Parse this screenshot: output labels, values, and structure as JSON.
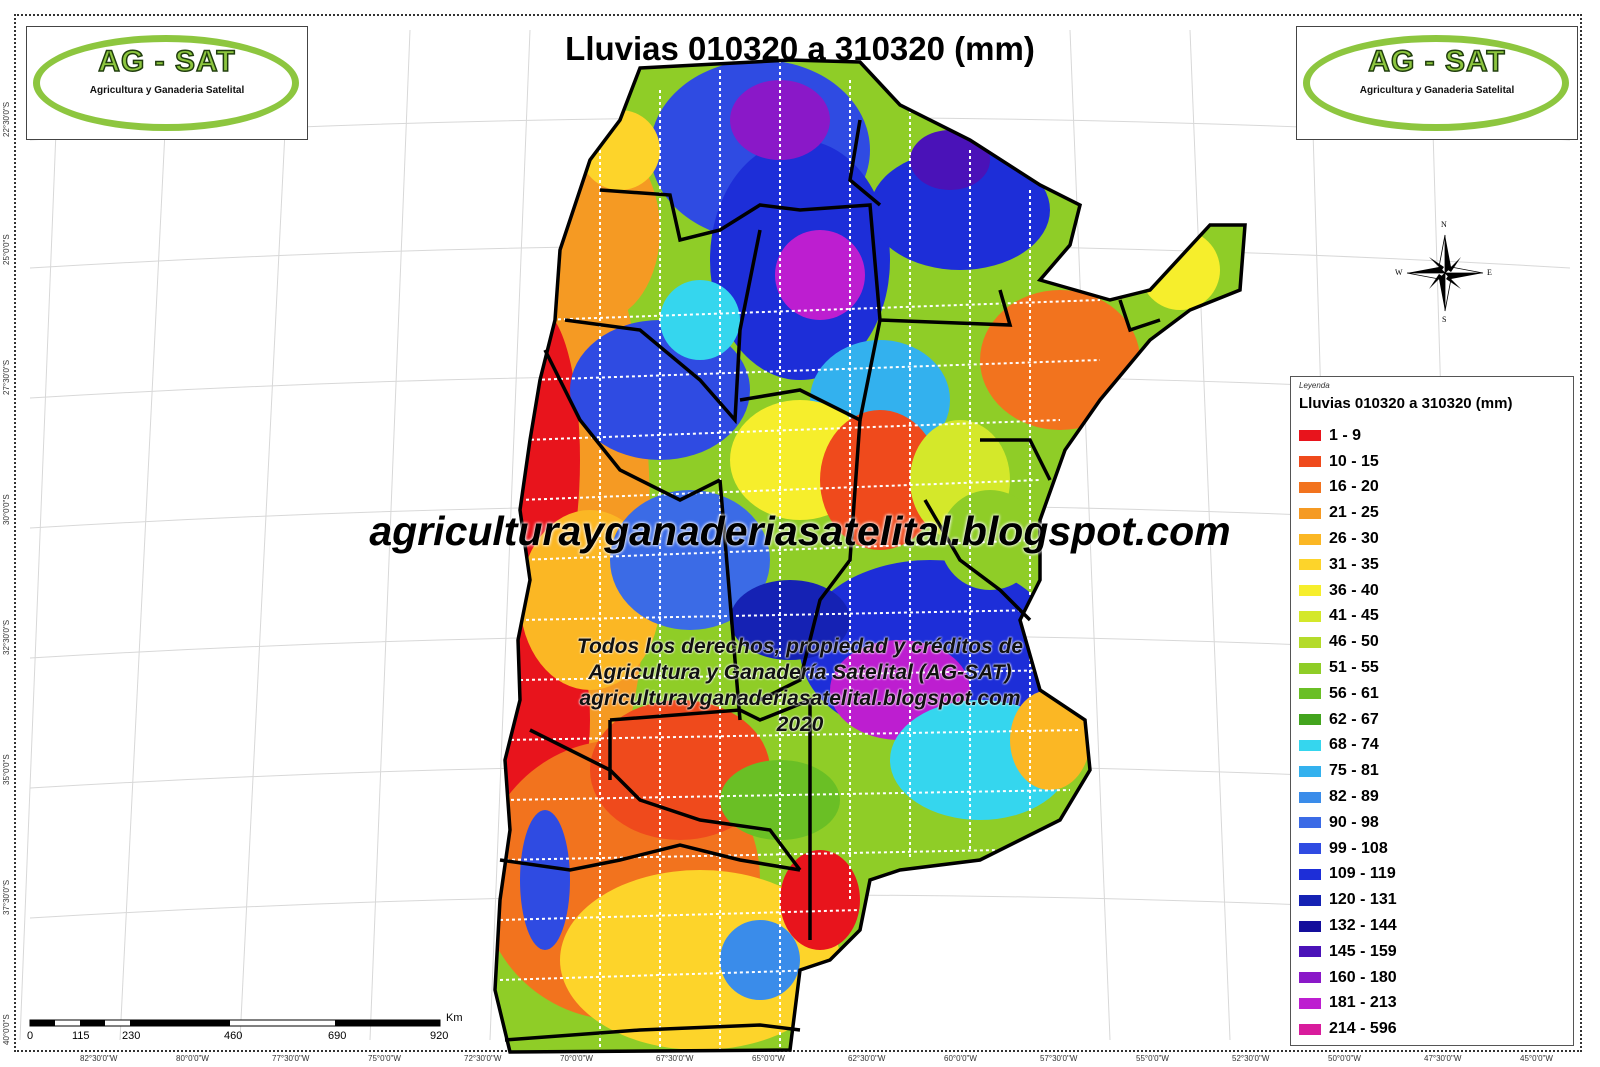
{
  "title": "Lluvias 010320 a 310320 (mm)",
  "logo": {
    "title": "AG - SAT",
    "subtitle": "Agricultura y Ganaderia Satelital",
    "color": "#8dc63f"
  },
  "watermark": "agriculturayganaderiasatelital.blogspot.com",
  "credits": [
    "Todos los derechos, propiedad y créditos de",
    "Agricultura y Ganadería Satelital (AG-SAT)",
    "agriculturayganaderiasatelital.blogspot.com",
    "2020"
  ],
  "legend": {
    "header": "Leyenda",
    "title": "Lluvias 010320 a 310320 (mm)",
    "items": [
      {
        "label": "1 - 9",
        "color": "#e8141c"
      },
      {
        "label": "10 - 15",
        "color": "#ef4a1c"
      },
      {
        "label": "16 - 20",
        "color": "#f2731e"
      },
      {
        "label": "21 - 25",
        "color": "#f59a23"
      },
      {
        "label": "26 - 30",
        "color": "#fbb724"
      },
      {
        "label": "31 - 35",
        "color": "#fdd42a"
      },
      {
        "label": "36 - 40",
        "color": "#f6ee2c"
      },
      {
        "label": "41 - 45",
        "color": "#d4e82a"
      },
      {
        "label": "46 - 50",
        "color": "#b4db2a"
      },
      {
        "label": "51 - 55",
        "color": "#8fcd27"
      },
      {
        "label": "56 - 61",
        "color": "#6abf25"
      },
      {
        "label": "62 - 67",
        "color": "#43a41e"
      },
      {
        "label": "68 - 74",
        "color": "#35d6ee"
      },
      {
        "label": "75 - 81",
        "color": "#33b1ee"
      },
      {
        "label": "82 - 89",
        "color": "#3a8cea"
      },
      {
        "label": "90 - 98",
        "color": "#3b6be6"
      },
      {
        "label": "99 - 108",
        "color": "#2f4be2"
      },
      {
        "label": "109 - 119",
        "color": "#1d2ed8"
      },
      {
        "label": "120 - 131",
        "color": "#1522b4"
      },
      {
        "label": "132 - 144",
        "color": "#140e9c"
      },
      {
        "label": "145 - 159",
        "color": "#4a12b8"
      },
      {
        "label": "160 - 180",
        "color": "#8a18c8"
      },
      {
        "label": "181 - 213",
        "color": "#bd1ed0"
      },
      {
        "label": "214 - 596",
        "color": "#d81c9c"
      }
    ]
  },
  "compass": {
    "n": "N",
    "s": "S",
    "e": "E",
    "w": "W"
  },
  "scale_bar": {
    "unit": "Km",
    "ticks": [
      "0",
      "115",
      "230",
      "460",
      "690",
      "920"
    ]
  },
  "latitude_labels": [
    "22°30'0\"S",
    "25°0'0\"S",
    "27°30'0\"S",
    "30°0'0\"S",
    "32°30'0\"S",
    "35°0'0\"S",
    "37°30'0\"S",
    "40°0'0\"S"
  ],
  "longitude_labels": [
    "82°30'0\"W",
    "80°0'0\"W",
    "77°30'0\"W",
    "75°0'0\"W",
    "72°30'0\"W",
    "70°0'0\"W",
    "67°30'0\"W",
    "65°0'0\"W",
    "62°30'0\"W",
    "60°0'0\"W",
    "57°30'0\"W",
    "55°0'0\"W",
    "52°30'0\"W",
    "50°0'0\"W",
    "47°30'0\"W",
    "45°0'0\"W"
  ]
}
